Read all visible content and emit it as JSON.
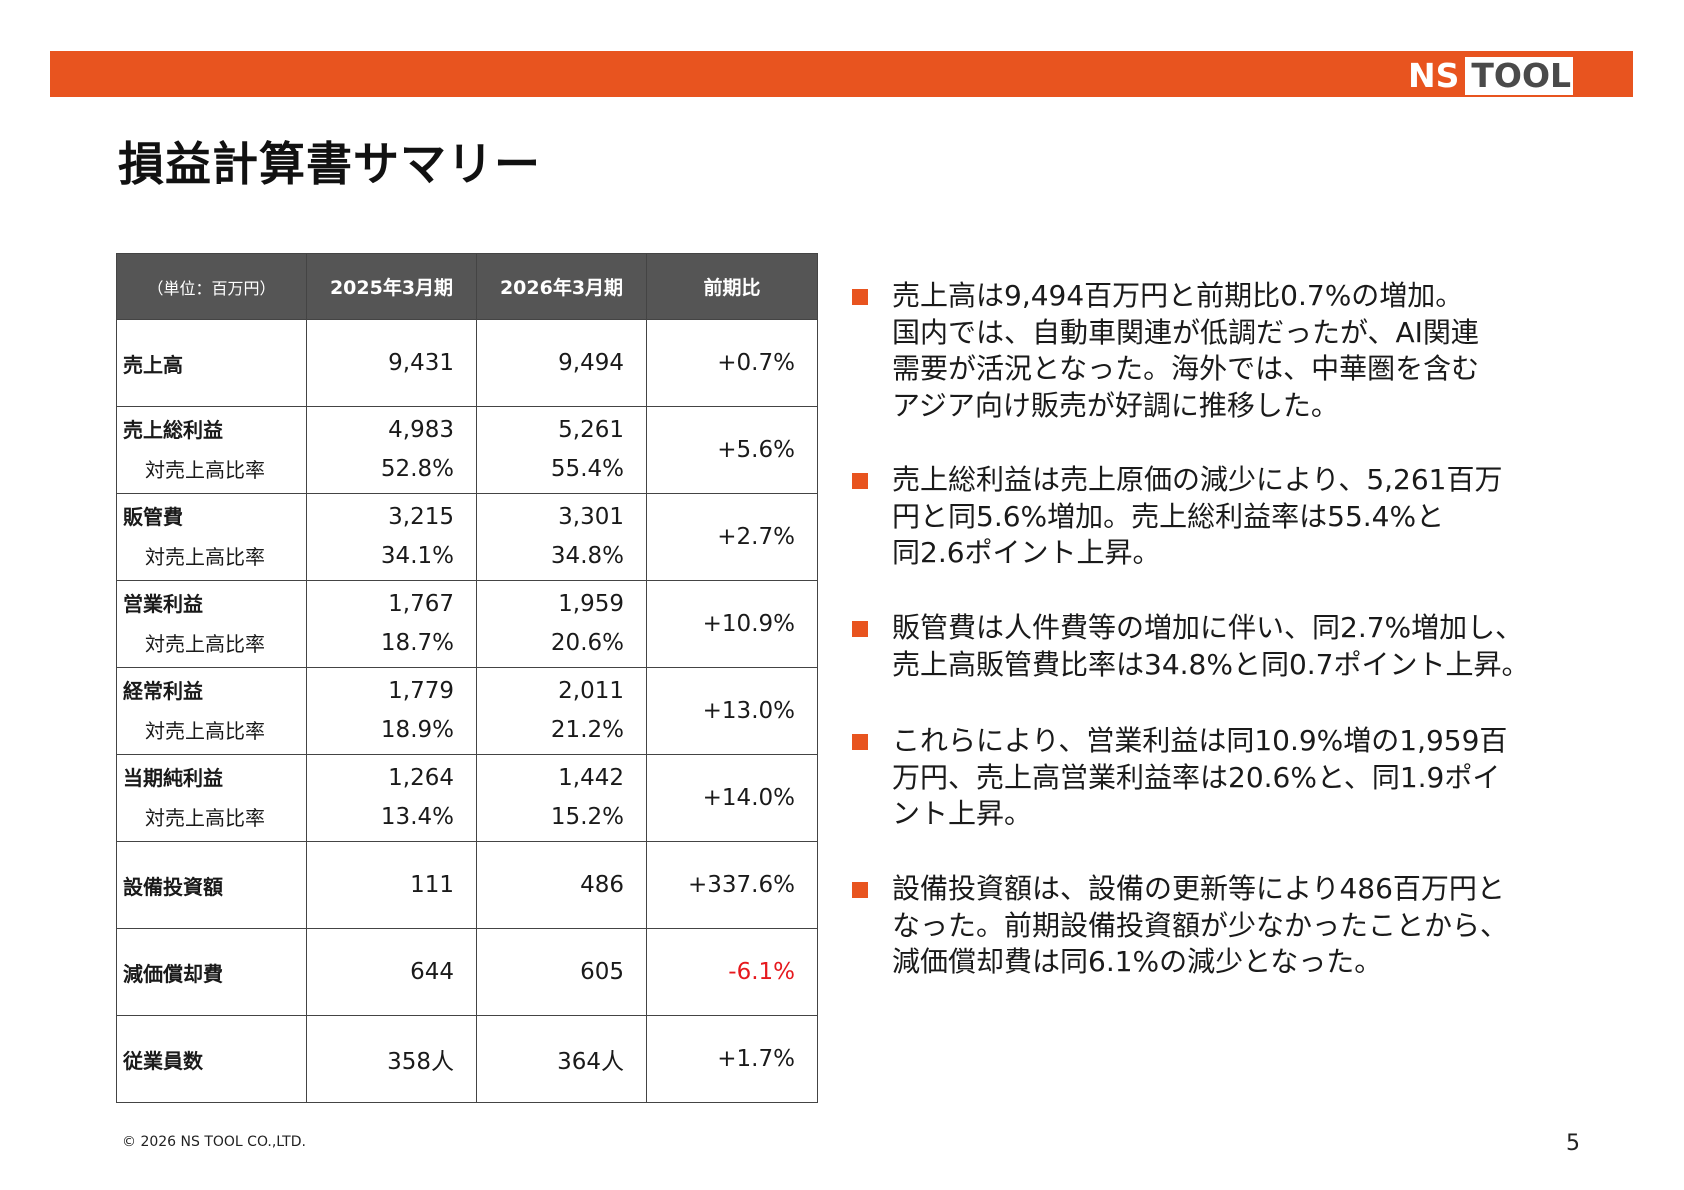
{
  "brand": {
    "ns": "NS",
    "tool": "TOOL",
    "accent_color": "#e8541f"
  },
  "title": "損益計算書サマリー",
  "table": {
    "header": {
      "unit": "（単位：百万円）",
      "col_2025": "2025年3月期",
      "col_2026": "2026年3月期",
      "col_change": "前期比"
    },
    "rows": [
      {
        "label": "売上高",
        "v2025": "9,431",
        "v2026": "9,494",
        "change": "+0.7%"
      },
      {
        "label": "売上総利益",
        "v2025": "4,983",
        "v2026": "5,261",
        "sub_label": "対売上高比率",
        "sub_v2025": "52.8%",
        "sub_v2026": "55.4%",
        "change": "+5.6%"
      },
      {
        "label": "販管費",
        "v2025": "3,215",
        "v2026": "3,301",
        "sub_label": "対売上高比率",
        "sub_v2025": "34.1%",
        "sub_v2026": "34.8%",
        "change": "+2.7%"
      },
      {
        "label": "営業利益",
        "v2025": "1,767",
        "v2026": "1,959",
        "sub_label": "対売上高比率",
        "sub_v2025": "18.7%",
        "sub_v2026": "20.6%",
        "change": "+10.9%"
      },
      {
        "label": "経常利益",
        "v2025": "1,779",
        "v2026": "2,011",
        "sub_label": "対売上高比率",
        "sub_v2025": "18.9%",
        "sub_v2026": "21.2%",
        "change": "+13.0%"
      },
      {
        "label": "当期純利益",
        "v2025": "1,264",
        "v2026": "1,442",
        "sub_label": "対売上高比率",
        "sub_v2025": "13.4%",
        "sub_v2026": "15.2%",
        "change": "+14.0%"
      },
      {
        "label": "設備投資額",
        "v2025": "111",
        "v2026": "486",
        "change": "+337.6%"
      },
      {
        "label": "減価償却費",
        "v2025": "644",
        "v2026": "605",
        "change": "-6.1%",
        "change_color": "#e6191e"
      },
      {
        "label": "従業員数",
        "v2025": "358人",
        "v2026": "364人",
        "change": "+1.7%"
      }
    ]
  },
  "bullets": [
    {
      "lines": [
        "売上高は9,494百万円と前期比0.7%の増加。",
        "国内では、自動車関連が低調だったが、AI関連",
        "需要が活況となった。海外では、中華圏を含む",
        "アジア向け販売が好調に推移した。"
      ]
    },
    {
      "lines": [
        "売上総利益は売上原価の減少により、5,261百万",
        "円と同5.6%増加。売上総利益率は55.4%と",
        "同2.6ポイント上昇。"
      ]
    },
    {
      "lines": [
        "販管費は人件費等の増加に伴い、同2.7%増加し、",
        "売上高販管費比率は34.8%と同0.7ポイント上昇。"
      ]
    },
    {
      "lines": [
        "これらにより、営業利益は同10.9%増の1,959百",
        "万円、売上高営業利益率は20.6%と、同1.9ポイ",
        "ント上昇。"
      ]
    },
    {
      "lines": [
        "設備投資額は、設備の更新等により486百万円と",
        "なった。前期設備投資額が少なかったことから、",
        "減価償却費は同6.1%の減少となった。"
      ]
    }
  ],
  "footer": {
    "copyright": "© 2026 NS TOOL CO.,LTD.",
    "page_number": "5"
  }
}
